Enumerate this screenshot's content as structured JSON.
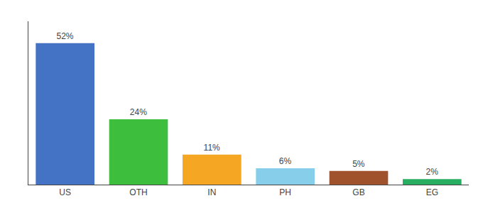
{
  "chart_data": {
    "type": "bar",
    "categories": [
      "US",
      "OTH",
      "IN",
      "PH",
      "GB",
      "EG"
    ],
    "values": [
      52,
      24,
      11,
      6,
      5,
      2
    ],
    "value_labels": [
      "52%",
      "24%",
      "11%",
      "6%",
      "5%",
      "2%"
    ],
    "colors": [
      "#4472C4",
      "#3DBE3D",
      "#F5A623",
      "#87CEEB",
      "#A0522D",
      "#27AE60"
    ],
    "ylim": [
      0,
      60
    ],
    "yticks": [],
    "grid": false,
    "data_labels": true,
    "tick_labels": "x"
  }
}
